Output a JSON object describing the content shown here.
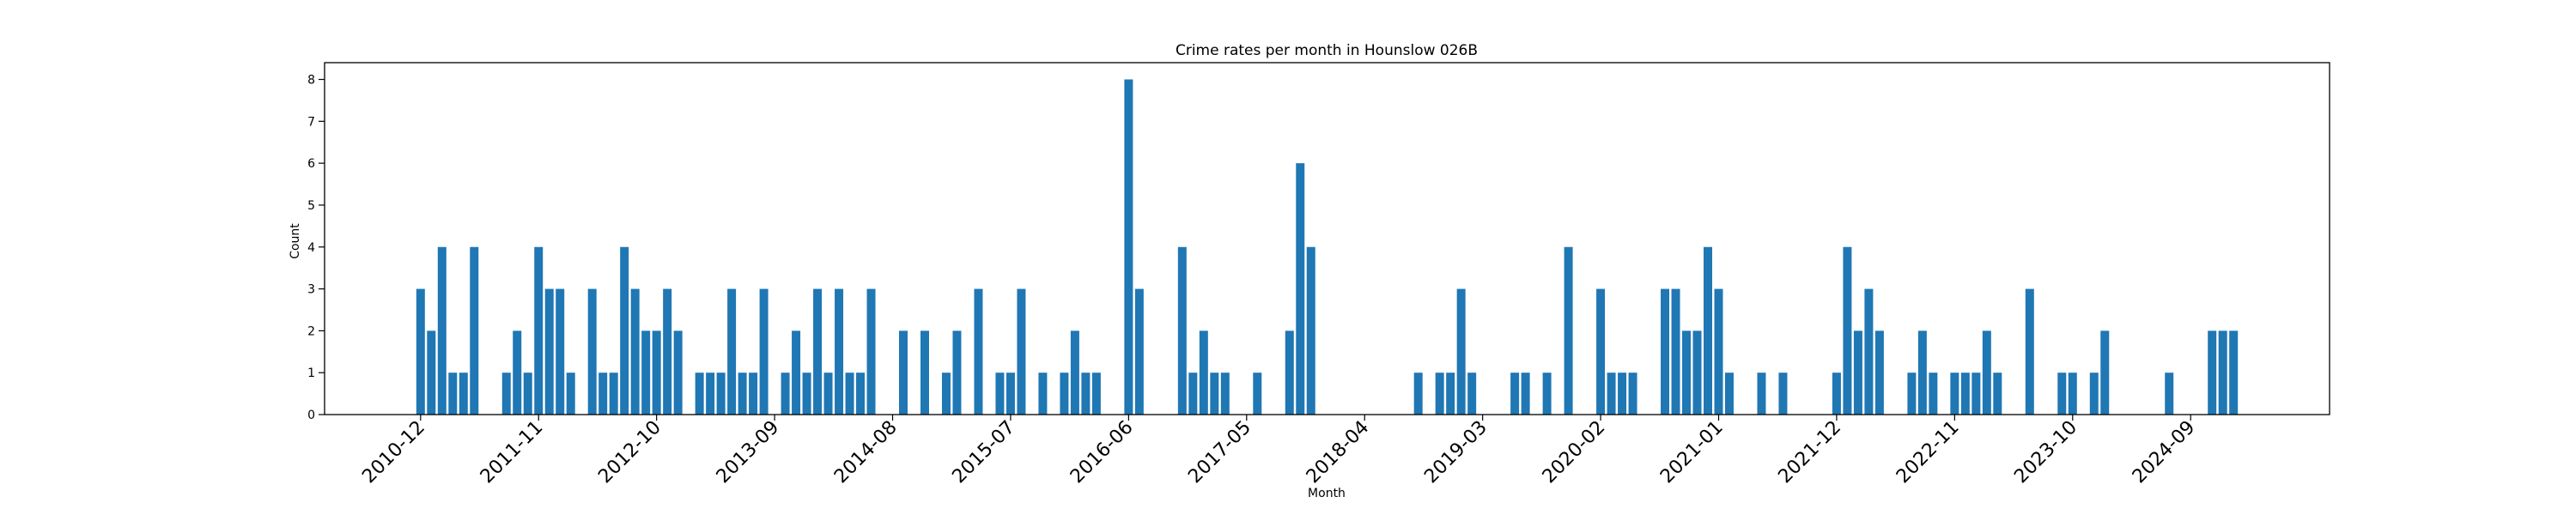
{
  "chart_data": {
    "type": "bar",
    "title": "Crime rates per month in Hounslow 026B",
    "xlabel": "Month",
    "ylabel": "Count",
    "ylim": [
      0,
      8.4
    ],
    "yticks": [
      0,
      1,
      2,
      3,
      4,
      5,
      6,
      7,
      8
    ],
    "xticks": [
      "2010-12",
      "2011-11",
      "2012-10",
      "2013-09",
      "2014-08",
      "2015-07",
      "2016-06",
      "2017-05",
      "2018-04",
      "2019-03",
      "2020-02",
      "2021-01",
      "2021-12",
      "2022-11",
      "2023-10",
      "2024-09"
    ],
    "grid": false,
    "color": "#1f77b4",
    "categories": [
      "2010-12",
      "2011-01",
      "2011-02",
      "2011-03",
      "2011-04",
      "2011-05",
      "2011-08",
      "2011-09",
      "2011-10",
      "2011-11",
      "2011-12",
      "2012-01",
      "2012-02",
      "2012-04",
      "2012-05",
      "2012-06",
      "2012-07",
      "2012-08",
      "2012-09",
      "2012-10",
      "2012-11",
      "2012-12",
      "2013-02",
      "2013-03",
      "2013-04",
      "2013-05",
      "2013-06",
      "2013-07",
      "2013-08",
      "2013-10",
      "2013-11",
      "2013-12",
      "2014-01",
      "2014-02",
      "2014-03",
      "2014-04",
      "2014-05",
      "2014-06",
      "2014-09",
      "2014-11",
      "2015-01",
      "2015-02",
      "2015-04",
      "2015-06",
      "2015-07",
      "2015-08",
      "2015-10",
      "2015-12",
      "2016-01",
      "2016-02",
      "2016-03",
      "2016-06",
      "2016-07",
      "2016-11",
      "2016-12",
      "2017-01",
      "2017-02",
      "2017-03",
      "2017-06",
      "2017-09",
      "2017-10",
      "2017-11",
      "2018-09",
      "2018-11",
      "2018-12",
      "2019-01",
      "2019-02",
      "2019-06",
      "2019-07",
      "2019-09",
      "2019-11",
      "2020-02",
      "2020-03",
      "2020-04",
      "2020-05",
      "2020-08",
      "2020-09",
      "2020-10",
      "2020-11",
      "2020-12",
      "2021-01",
      "2021-02",
      "2021-05",
      "2021-07",
      "2021-12",
      "2022-01",
      "2022-02",
      "2022-03",
      "2022-04",
      "2022-07",
      "2022-08",
      "2022-09",
      "2022-11",
      "2022-12",
      "2023-01",
      "2023-02",
      "2023-03",
      "2023-06",
      "2023-09",
      "2023-10",
      "2023-12",
      "2024-01",
      "2024-07",
      "2024-11",
      "2024-12",
      "2025-01"
    ],
    "values": [
      3,
      2,
      4,
      1,
      1,
      4,
      1,
      2,
      1,
      4,
      3,
      3,
      1,
      3,
      1,
      1,
      4,
      3,
      2,
      2,
      3,
      2,
      1,
      1,
      1,
      3,
      1,
      1,
      3,
      1,
      2,
      1,
      3,
      1,
      3,
      1,
      1,
      3,
      2,
      2,
      1,
      2,
      3,
      1,
      1,
      3,
      1,
      1,
      2,
      1,
      1,
      8,
      3,
      4,
      1,
      2,
      1,
      1,
      1,
      2,
      6,
      4,
      1,
      1,
      1,
      3,
      1,
      1,
      1,
      1,
      4,
      3,
      1,
      1,
      1,
      3,
      3,
      2,
      2,
      4,
      3,
      1,
      1,
      1,
      1,
      4,
      2,
      3,
      2,
      1,
      2,
      1,
      1,
      1,
      1,
      2,
      1,
      3,
      1,
      1,
      1,
      2,
      1,
      2,
      2,
      2
    ]
  }
}
